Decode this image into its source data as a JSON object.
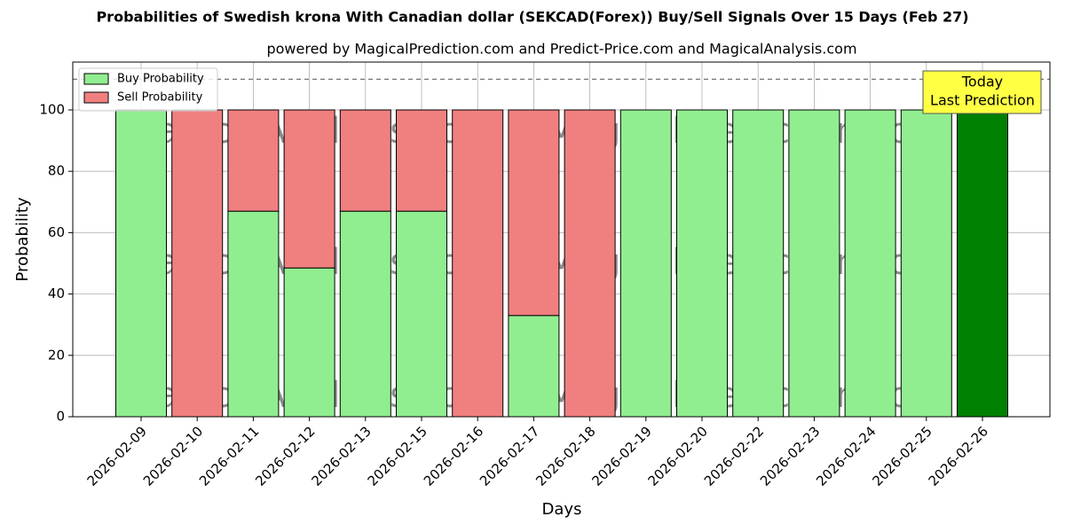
{
  "chart_data": {
    "type": "stacked_bar",
    "title": "Probabilities of Swedish krona With Canadian dollar (SEKCAD(Forex)) Buy/Sell Signals Over 15 Days (Feb 27)",
    "subtitle": "powered by MagicalPrediction.com and Predict-Price.com and MagicalAnalysis.com",
    "xlabel": "Days",
    "ylabel": "Probability",
    "categories": [
      "2026-02-09",
      "2026-02-10",
      "2026-02-11",
      "2026-02-12",
      "2026-02-13",
      "2026-02-15",
      "2026-02-16",
      "2026-02-17",
      "2026-02-18",
      "2026-02-19",
      "2026-02-20",
      "2026-02-22",
      "2026-02-23",
      "2026-02-24",
      "2026-02-25",
      "2026-02-26"
    ],
    "series": [
      {
        "name": "Buy Probability",
        "color": [
          "#90ee90",
          "#90ee90",
          "#90ee90",
          "#90ee90",
          "#90ee90",
          "#90ee90",
          "#90ee90",
          "#90ee90",
          "#90ee90",
          "#90ee90",
          "#90ee90",
          "#90ee90",
          "#90ee90",
          "#90ee90",
          "#90ee90",
          "#008000"
        ],
        "values": [
          100,
          0,
          67,
          48.5,
          67,
          67,
          0,
          33,
          0,
          100,
          100,
          100,
          100,
          100,
          100,
          100
        ]
      },
      {
        "name": "Sell Probability",
        "color": "#f08080",
        "values": [
          0,
          100,
          33,
          51.5,
          33,
          33,
          100,
          67,
          100,
          0,
          0,
          0,
          0,
          0,
          0,
          0
        ]
      }
    ],
    "ylim": [
      0,
      115.6
    ],
    "yticks": [
      0,
      20,
      40,
      60,
      80,
      100
    ],
    "grid": true,
    "reference_line": 110,
    "legend": "upper left",
    "annotation": [
      "Today",
      "Last Prediction"
    ],
    "watermarks": [
      "MagicalAnalysis.com",
      "MagicalPrediction.com"
    ]
  }
}
